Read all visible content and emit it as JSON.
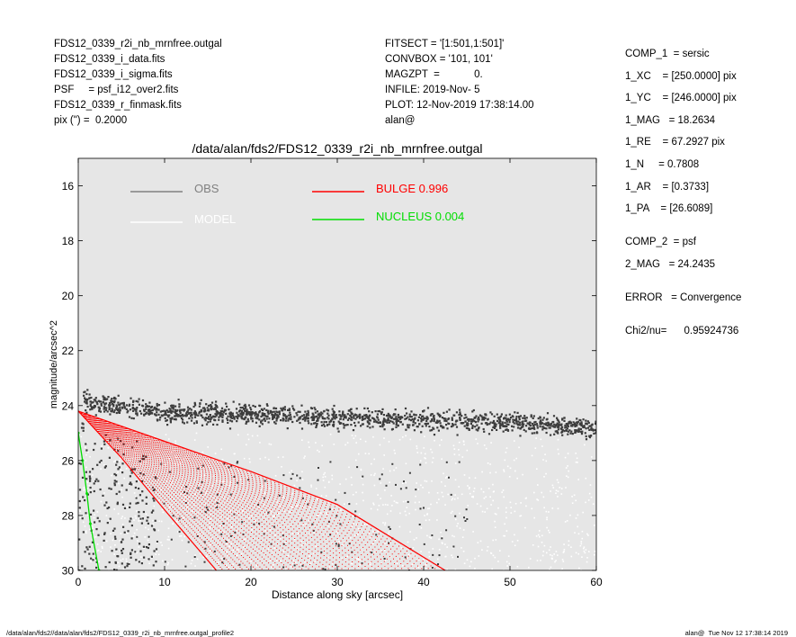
{
  "header_left": [
    "FDS12_0339_r2i_nb_mrnfree.outgal",
    "FDS12_0339_i_data.fits",
    "FDS12_0339_i_sigma.fits",
    "PSF     = psf_i12_over2.fits",
    "FDS12_0339_r_finmask.fits",
    "pix (\") =  0.2000"
  ],
  "header_mid": [
    "FITSECT = '[1:501,1:501]'",
    "CONVBOX = '101, 101'",
    "MAGZPT  =            0.",
    "INFILE: 2019-Nov- 5",
    "PLOT: 12-Nov-2019 17:38:14.00",
    "alan@"
  ],
  "header_right": [
    "COMP_1  = sersic",
    "1_XC    = [250.0000] pix",
    "1_YC    = [246.0000] pix",
    "1_MAG   = 18.2634",
    "1_RE    = 67.2927 pix",
    "1_N     = 0.7808",
    "1_AR    = [0.3733]",
    "1_PA    = [26.6089]",
    "",
    "COMP_2  = psf",
    "2_MAG   = 24.2435",
    "",
    "ERROR   = Convergence",
    "",
    "Chi2/nu=      0.95924736"
  ],
  "footer_left": "/data/alan/fds2//data/alan/fds2/FDS12_0339_r2i_nb_mrnfree.outgal_profile2",
  "footer_right": "alan@  Tue Nov 12 17:38:14 2019",
  "colors": {
    "plot_bg": "#e6e6e6",
    "obs": "#3c3c3c",
    "obs_legend": "#808080",
    "model": "#ffffff",
    "bulge": "#ff0000",
    "nucleus": "#00dd00"
  },
  "chart_data": {
    "type": "scatter",
    "title": "/data/alan/fds2/FDS12_0339_r2i_nb_mrnfree.outgal",
    "xlabel": "Distance along sky [arcsec]",
    "ylabel": "magnitude/arcsec^2",
    "xlim": [
      0,
      60
    ],
    "ylim": [
      30,
      15
    ],
    "y_inverted": true,
    "xticks": [
      0,
      10,
      20,
      30,
      40,
      50,
      60
    ],
    "yticks": [
      16,
      18,
      20,
      22,
      24,
      26,
      28,
      30
    ],
    "grid": false,
    "legend": [
      {
        "label": "OBS",
        "color": "#808080"
      },
      {
        "label": "MODEL",
        "color": "#ffffff"
      },
      {
        "label": "BULGE  0.996",
        "color": "#ff0000"
      },
      {
        "label": "NUCLEUS  0.004",
        "color": "#00dd00"
      }
    ],
    "legend_position": "top",
    "series": [
      {
        "name": "OBS",
        "kind": "scatter",
        "description_points": [
          [
            0.5,
            23.8
          ],
          [
            5,
            24.0
          ],
          [
            10,
            24.2
          ],
          [
            20,
            24.3
          ],
          [
            30,
            24.4
          ],
          [
            40,
            24.5
          ],
          [
            50,
            24.6
          ],
          [
            60,
            24.8
          ]
        ],
        "band_halfwidth_mag": 0.4
      },
      {
        "name": "BULGE",
        "kind": "fan",
        "upper_edge": [
          [
            0,
            24.2
          ],
          [
            10,
            25.3
          ],
          [
            20,
            26.4
          ],
          [
            30,
            27.6
          ],
          [
            42.5,
            30
          ]
        ],
        "lower_edge": [
          [
            0,
            24.2
          ],
          [
            5,
            25.9
          ],
          [
            10,
            27.8
          ],
          [
            16,
            30
          ]
        ]
      },
      {
        "name": "NUCLEUS",
        "kind": "line",
        "points": [
          [
            0,
            25.0
          ],
          [
            0.5,
            26.0
          ],
          [
            1.0,
            27.2
          ],
          [
            1.4,
            28.3
          ],
          [
            2.4,
            30.0
          ]
        ]
      }
    ]
  }
}
